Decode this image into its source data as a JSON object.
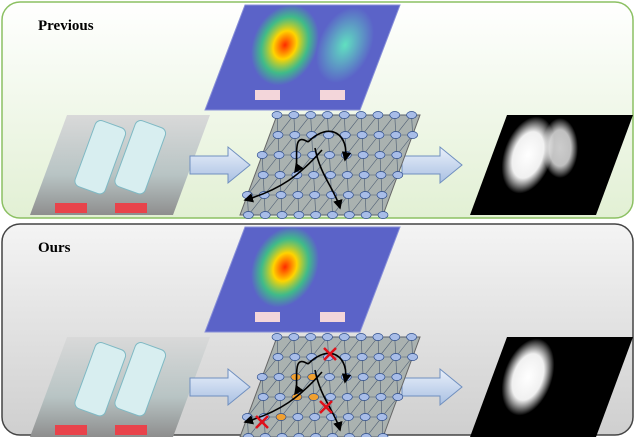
{
  "panels": [
    {
      "label": "Previous"
    },
    {
      "label": "Ours"
    }
  ]
}
